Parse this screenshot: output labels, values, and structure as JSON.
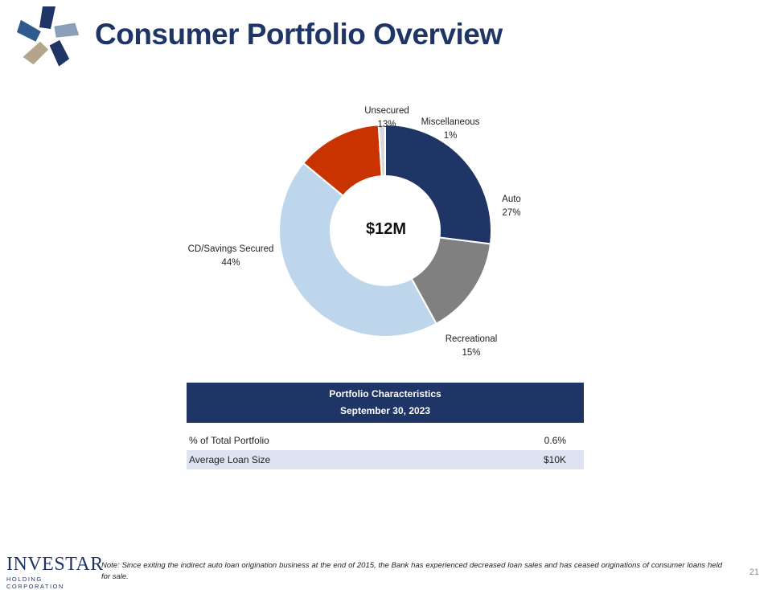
{
  "slide": {
    "title": "Consumer Portfolio Overview",
    "page_number": "21"
  },
  "chart": {
    "center_label": "$12M",
    "labels": [
      {
        "name": "Unsecured",
        "pct": "13%"
      },
      {
        "name": "Miscellaneous",
        "pct": "1%"
      },
      {
        "name": "Auto",
        "pct": "27%"
      },
      {
        "name": "Recreational",
        "pct": "15%"
      },
      {
        "name": "CD/Savings Secured",
        "pct": "44%"
      }
    ]
  },
  "chart_data": {
    "type": "pie",
    "donut": true,
    "center_text": "$12M",
    "categories": [
      "Auto",
      "Recreational",
      "CD/Savings Secured",
      "Unsecured",
      "Miscellaneous"
    ],
    "values": [
      27,
      15,
      44,
      13,
      1
    ],
    "unit": "%",
    "colors": [
      "#1f3566",
      "#808080",
      "#bed6ec",
      "#c93300",
      "#d9d9d9"
    ]
  },
  "table": {
    "header_line1": "Portfolio Characteristics",
    "header_line2": "September 30, 2023",
    "rows": [
      {
        "label": "% of Total Portfolio",
        "value": "0.6%"
      },
      {
        "label": "Average Loan Size",
        "value": "$10K"
      }
    ]
  },
  "footer": {
    "brand": "INVESTAR",
    "brand_sub": "HOLDING CORPORATION",
    "note": "Note: Since exiting the indirect auto loan origination business at the end of 2015, the Bank has experienced decreased loan sales and has ceased originations of consumer loans held for sale."
  },
  "logo": {
    "icon": "investar-star-logo"
  }
}
